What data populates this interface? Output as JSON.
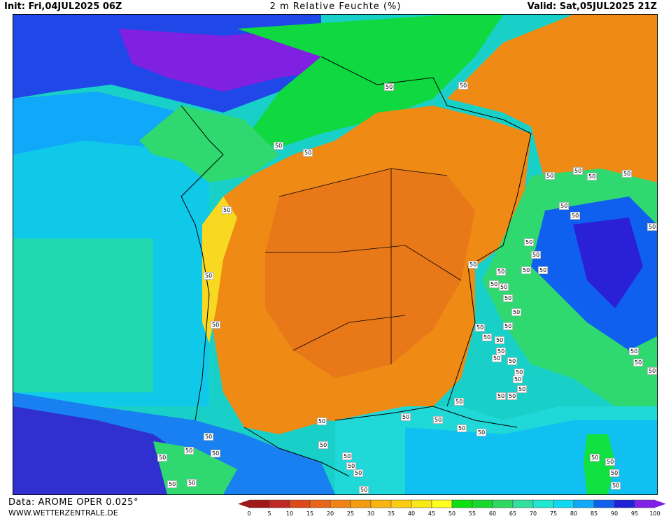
{
  "header": {
    "init": "Init: Fri,04JUL2025 06Z",
    "title": "2 m Relative Feuchte (%)",
    "valid": "Valid: Sat,05JUL2025 21Z"
  },
  "footer": {
    "data_source": "Data: AROME OPER 0.025°",
    "website": "WWW.WETTERZENTRALE.DE"
  },
  "contour_label": "50",
  "legend": {
    "ticks": [
      "0",
      "5",
      "10",
      "15",
      "20",
      "25",
      "30",
      "35",
      "40",
      "45",
      "50",
      "55",
      "60",
      "65",
      "70",
      "75",
      "80",
      "85",
      "90",
      "95",
      "100"
    ],
    "colors": [
      "#a01818",
      "#c02828",
      "#dc4a1a",
      "#e8661a",
      "#ef8414",
      "#f49c10",
      "#f8b410",
      "#fccc10",
      "#f8e818",
      "#ffff20",
      "#10e010",
      "#18d830",
      "#30d860",
      "#30e0a0",
      "#20e8d0",
      "#10d8f0",
      "#10a8f8",
      "#1060f0",
      "#2020d8",
      "#8020e8"
    ]
  },
  "icons": [
    "contour-label-50"
  ]
}
